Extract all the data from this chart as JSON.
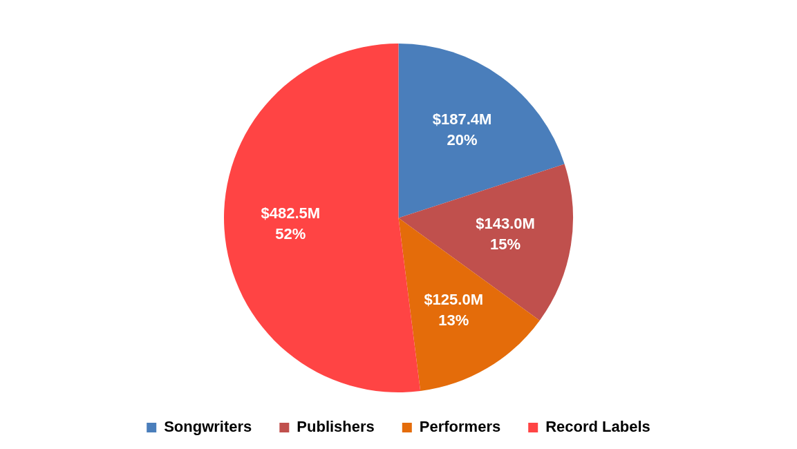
{
  "chart_data": {
    "type": "pie",
    "categories": [
      "Songwriters",
      "Publishers",
      "Performers",
      "Record Labels"
    ],
    "values": [
      20,
      15,
      13,
      52
    ],
    "colors": [
      "#4a7ebb",
      "#c0504d",
      "#e46c0a",
      "#ff4444"
    ],
    "value_labels": [
      "$187.4M\n20%",
      "$143.0M\n15%",
      "$125.0M\n13%",
      "$482.5M\n52%"
    ],
    "legend": "bottom"
  }
}
